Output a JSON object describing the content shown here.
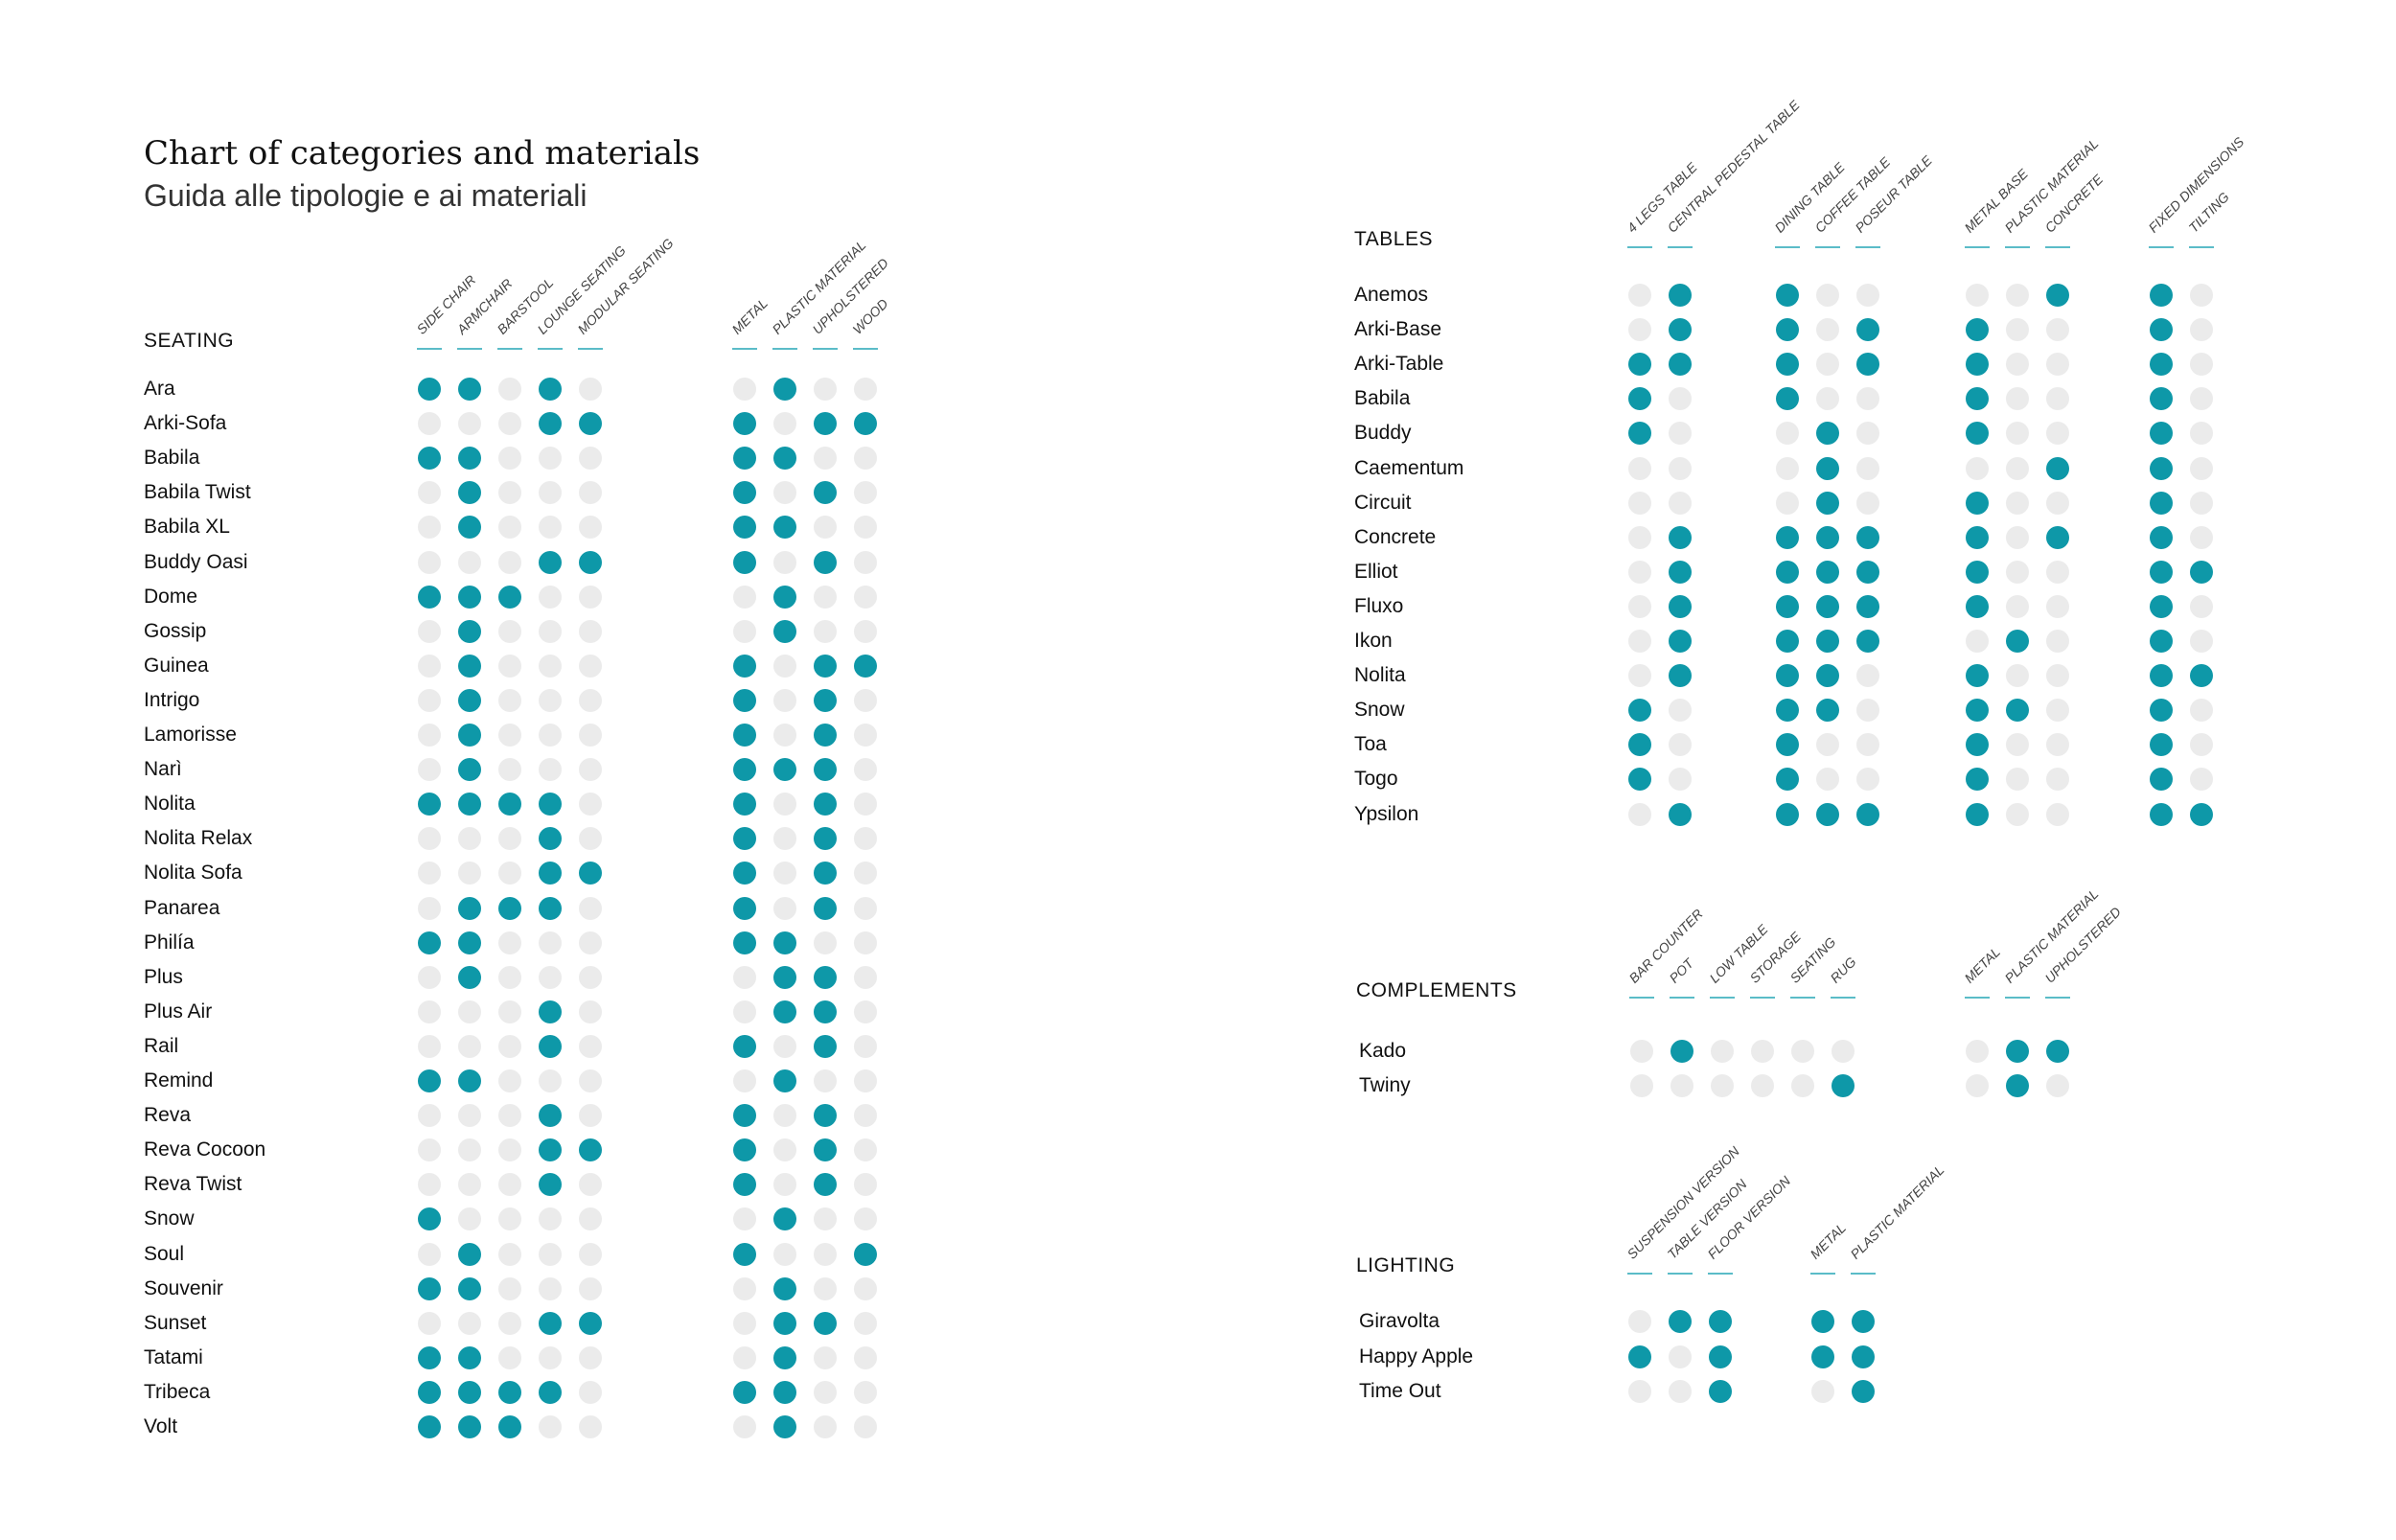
{
  "title": "Chart of categories and materials",
  "subtitle": "Guida alle tipologie e ai materiali",
  "colors": {
    "on": "#0e98a8",
    "off": "#ebebeb",
    "rule": "#5bbcc8"
  },
  "chart_data": {
    "type": "table",
    "sections": {
      "seating": {
        "label": "SEATING",
        "groups": [
          [
            "SIDE CHAIR",
            "ARMCHAIR",
            "BARSTOOL",
            "LOUNGE SEATING",
            "MODULAR SEATING"
          ],
          [
            "METAL",
            "PLASTIC MATERIAL",
            "UPHOLSTERED",
            "WOOD"
          ]
        ],
        "rows": [
          {
            "name": "Ara",
            "values": [
              [
                1,
                1,
                0,
                1,
                0
              ],
              [
                0,
                1,
                0,
                0
              ]
            ]
          },
          {
            "name": "Arki-Sofa",
            "values": [
              [
                0,
                0,
                0,
                1,
                1
              ],
              [
                1,
                0,
                1,
                1
              ]
            ]
          },
          {
            "name": "Babila",
            "values": [
              [
                1,
                1,
                0,
                0,
                0
              ],
              [
                1,
                1,
                0,
                0
              ]
            ]
          },
          {
            "name": "Babila Twist",
            "values": [
              [
                0,
                1,
                0,
                0,
                0
              ],
              [
                1,
                0,
                1,
                0
              ]
            ]
          },
          {
            "name": "Babila XL",
            "values": [
              [
                0,
                1,
                0,
                0,
                0
              ],
              [
                1,
                1,
                0,
                0
              ]
            ]
          },
          {
            "name": "Buddy Oasi",
            "values": [
              [
                0,
                0,
                0,
                1,
                1
              ],
              [
                1,
                0,
                1,
                0
              ]
            ]
          },
          {
            "name": "Dome",
            "values": [
              [
                1,
                1,
                1,
                0,
                0
              ],
              [
                0,
                1,
                0,
                0
              ]
            ]
          },
          {
            "name": "Gossip",
            "values": [
              [
                0,
                1,
                0,
                0,
                0
              ],
              [
                0,
                1,
                0,
                0
              ]
            ]
          },
          {
            "name": "Guinea",
            "values": [
              [
                0,
                1,
                0,
                0,
                0
              ],
              [
                1,
                0,
                1,
                1
              ]
            ]
          },
          {
            "name": "Intrigo",
            "values": [
              [
                0,
                1,
                0,
                0,
                0
              ],
              [
                1,
                0,
                1,
                0
              ]
            ]
          },
          {
            "name": "Lamorisse",
            "values": [
              [
                0,
                1,
                0,
                0,
                0
              ],
              [
                1,
                0,
                1,
                0
              ]
            ]
          },
          {
            "name": "Narì",
            "values": [
              [
                0,
                1,
                0,
                0,
                0
              ],
              [
                1,
                1,
                1,
                0
              ]
            ]
          },
          {
            "name": "Nolita",
            "values": [
              [
                1,
                1,
                1,
                1,
                0
              ],
              [
                1,
                0,
                1,
                0
              ]
            ]
          },
          {
            "name": "Nolita Relax",
            "values": [
              [
                0,
                0,
                0,
                1,
                0
              ],
              [
                1,
                0,
                1,
                0
              ]
            ]
          },
          {
            "name": "Nolita Sofa",
            "values": [
              [
                0,
                0,
                0,
                1,
                1
              ],
              [
                1,
                0,
                1,
                0
              ]
            ]
          },
          {
            "name": "Panarea",
            "values": [
              [
                0,
                1,
                1,
                1,
                0
              ],
              [
                1,
                0,
                1,
                0
              ]
            ]
          },
          {
            "name": "Philía",
            "values": [
              [
                1,
                1,
                0,
                0,
                0
              ],
              [
                1,
                1,
                0,
                0
              ]
            ]
          },
          {
            "name": "Plus",
            "values": [
              [
                0,
                1,
                0,
                0,
                0
              ],
              [
                0,
                1,
                1,
                0
              ]
            ]
          },
          {
            "name": "Plus Air",
            "values": [
              [
                0,
                0,
                0,
                1,
                0
              ],
              [
                0,
                1,
                1,
                0
              ]
            ]
          },
          {
            "name": "Rail",
            "values": [
              [
                0,
                0,
                0,
                1,
                0
              ],
              [
                1,
                0,
                1,
                0
              ]
            ]
          },
          {
            "name": "Remind",
            "values": [
              [
                1,
                1,
                0,
                0,
                0
              ],
              [
                0,
                1,
                0,
                0
              ]
            ]
          },
          {
            "name": "Reva",
            "values": [
              [
                0,
                0,
                0,
                1,
                0
              ],
              [
                1,
                0,
                1,
                0
              ]
            ]
          },
          {
            "name": "Reva Cocoon",
            "values": [
              [
                0,
                0,
                0,
                1,
                1
              ],
              [
                1,
                0,
                1,
                0
              ]
            ]
          },
          {
            "name": "Reva Twist",
            "values": [
              [
                0,
                0,
                0,
                1,
                0
              ],
              [
                1,
                0,
                1,
                0
              ]
            ]
          },
          {
            "name": "Snow",
            "values": [
              [
                1,
                0,
                0,
                0,
                0
              ],
              [
                0,
                1,
                0,
                0
              ]
            ]
          },
          {
            "name": "Soul",
            "values": [
              [
                0,
                1,
                0,
                0,
                0
              ],
              [
                1,
                0,
                0,
                1
              ]
            ]
          },
          {
            "name": "Souvenir",
            "values": [
              [
                1,
                1,
                0,
                0,
                0
              ],
              [
                0,
                1,
                0,
                0
              ]
            ]
          },
          {
            "name": "Sunset",
            "values": [
              [
                0,
                0,
                0,
                1,
                1
              ],
              [
                0,
                1,
                1,
                0
              ]
            ]
          },
          {
            "name": "Tatami",
            "values": [
              [
                1,
                1,
                0,
                0,
                0
              ],
              [
                0,
                1,
                0,
                0
              ]
            ]
          },
          {
            "name": "Tribeca",
            "values": [
              [
                1,
                1,
                1,
                1,
                0
              ],
              [
                1,
                1,
                0,
                0
              ]
            ]
          },
          {
            "name": "Volt",
            "values": [
              [
                1,
                1,
                1,
                0,
                0
              ],
              [
                0,
                1,
                0,
                0
              ]
            ]
          }
        ]
      },
      "tables": {
        "label": "TABLES",
        "groups": [
          [
            "4 LEGS TABLE",
            "CENTRAL PEDESTAL TABLE"
          ],
          [
            "DINING TABLE",
            "COFFEE TABLE",
            "POSEUR TABLE"
          ],
          [
            "METAL BASE",
            "PLASTIC MATERIAL",
            "CONCRETE"
          ],
          [
            "FIXED DIMENSIONS",
            "TILTING"
          ]
        ],
        "rows": [
          {
            "name": "Anemos",
            "values": [
              [
                0,
                1
              ],
              [
                1,
                0,
                0
              ],
              [
                0,
                0,
                1
              ],
              [
                1,
                0
              ]
            ]
          },
          {
            "name": "Arki-Base",
            "values": [
              [
                0,
                1
              ],
              [
                1,
                0,
                1
              ],
              [
                1,
                0,
                0
              ],
              [
                1,
                0
              ]
            ]
          },
          {
            "name": "Arki-Table",
            "values": [
              [
                1,
                1
              ],
              [
                1,
                0,
                1
              ],
              [
                1,
                0,
                0
              ],
              [
                1,
                0
              ]
            ]
          },
          {
            "name": "Babila",
            "values": [
              [
                1,
                0
              ],
              [
                1,
                0,
                0
              ],
              [
                1,
                0,
                0
              ],
              [
                1,
                0
              ]
            ]
          },
          {
            "name": "Buddy",
            "values": [
              [
                1,
                0
              ],
              [
                0,
                1,
                0
              ],
              [
                1,
                0,
                0
              ],
              [
                1,
                0
              ]
            ]
          },
          {
            "name": "Caementum",
            "values": [
              [
                0,
                0
              ],
              [
                0,
                1,
                0
              ],
              [
                0,
                0,
                1
              ],
              [
                1,
                0
              ]
            ]
          },
          {
            "name": "Circuit",
            "values": [
              [
                0,
                0
              ],
              [
                0,
                1,
                0
              ],
              [
                1,
                0,
                0
              ],
              [
                1,
                0
              ]
            ]
          },
          {
            "name": "Concrete",
            "values": [
              [
                0,
                1
              ],
              [
                1,
                1,
                1
              ],
              [
                1,
                0,
                1
              ],
              [
                1,
                0
              ]
            ]
          },
          {
            "name": "Elliot",
            "values": [
              [
                0,
                1
              ],
              [
                1,
                1,
                1
              ],
              [
                1,
                0,
                0
              ],
              [
                1,
                1
              ]
            ]
          },
          {
            "name": "Fluxo",
            "values": [
              [
                0,
                1
              ],
              [
                1,
                1,
                1
              ],
              [
                1,
                0,
                0
              ],
              [
                1,
                0
              ]
            ]
          },
          {
            "name": "Ikon",
            "values": [
              [
                0,
                1
              ],
              [
                1,
                1,
                1
              ],
              [
                0,
                1,
                0
              ],
              [
                1,
                0
              ]
            ]
          },
          {
            "name": "Nolita",
            "values": [
              [
                0,
                1
              ],
              [
                1,
                1,
                0
              ],
              [
                1,
                0,
                0
              ],
              [
                1,
                1
              ]
            ]
          },
          {
            "name": "Snow",
            "values": [
              [
                1,
                0
              ],
              [
                1,
                1,
                0
              ],
              [
                1,
                1,
                0
              ],
              [
                1,
                0
              ]
            ]
          },
          {
            "name": "Toa",
            "values": [
              [
                1,
                0
              ],
              [
                1,
                0,
                0
              ],
              [
                1,
                0,
                0
              ],
              [
                1,
                0
              ]
            ]
          },
          {
            "name": "Togo",
            "values": [
              [
                1,
                0
              ],
              [
                1,
                0,
                0
              ],
              [
                1,
                0,
                0
              ],
              [
                1,
                0
              ]
            ]
          },
          {
            "name": "Ypsilon",
            "values": [
              [
                0,
                1
              ],
              [
                1,
                1,
                1
              ],
              [
                1,
                0,
                0
              ],
              [
                1,
                1
              ]
            ]
          }
        ]
      },
      "complements": {
        "label": "COMPLEMENTS",
        "groups": [
          [
            "BAR COUNTER",
            "POT",
            "LOW TABLE",
            "STORAGE",
            "SEATING",
            "RUG"
          ],
          [
            "METAL",
            "PLASTIC MATERIAL",
            "UPHOLSTERED"
          ]
        ],
        "rows": [
          {
            "name": "Kado",
            "values": [
              [
                0,
                1,
                0,
                0,
                0,
                0
              ],
              [
                0,
                1,
                1
              ]
            ]
          },
          {
            "name": "Twiny",
            "values": [
              [
                0,
                0,
                0,
                0,
                0,
                1
              ],
              [
                0,
                1,
                0
              ]
            ]
          }
        ]
      },
      "lighting": {
        "label": "LIGHTING",
        "groups": [
          [
            "SUSPENSION VERSION",
            "TABLE VERSION",
            "FLOOR VERSION"
          ],
          [
            "METAL",
            "PLASTIC MATERIAL"
          ]
        ],
        "rows": [
          {
            "name": "Giravolta",
            "values": [
              [
                0,
                1,
                1
              ],
              [
                1,
                1
              ]
            ]
          },
          {
            "name": "Happy Apple",
            "values": [
              [
                1,
                0,
                1
              ],
              [
                1,
                1
              ]
            ]
          },
          {
            "name": "Time Out",
            "values": [
              [
                0,
                0,
                1
              ],
              [
                0,
                1
              ]
            ]
          }
        ]
      }
    }
  }
}
